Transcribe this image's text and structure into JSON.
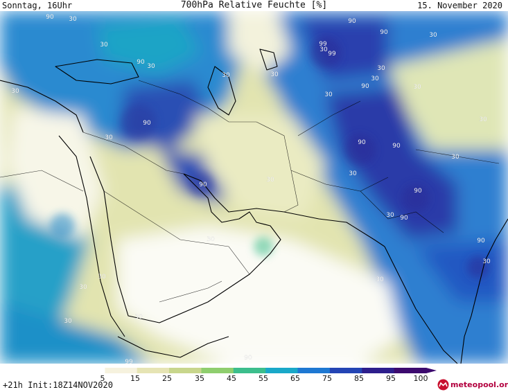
{
  "header": {
    "left": "Sonntag, 16Uhr",
    "title": "700hPa Relative Feuchte [%]",
    "right": "15. November 2020"
  },
  "legend": {
    "ticks": [
      "5",
      "15",
      "25",
      "35",
      "45",
      "55",
      "65",
      "75",
      "85",
      "95",
      "100"
    ],
    "colors": [
      "#ffffff",
      "#f6f2de",
      "#e6e4b4",
      "#c8d68c",
      "#8fce6e",
      "#3cbe8c",
      "#19a8c8",
      "#1e78d2",
      "#2344b4",
      "#2d1e8c",
      "#3c0a6e"
    ]
  },
  "footer": {
    "run_info": "+21h Init:18Z14NOV2020",
    "logo_text": "meteopool.org"
  },
  "map_labels": [
    "90",
    "30",
    "30",
    "90",
    "30",
    "30",
    "99",
    "99",
    "90",
    "90",
    "30",
    "30",
    "30",
    "30",
    "90",
    "30",
    "30",
    "90",
    "30",
    "90",
    "30",
    "90",
    "30",
    "90",
    "30",
    "90",
    "30",
    "90",
    "30",
    "90",
    "30",
    "30",
    "30",
    "30",
    "30",
    "30",
    "30",
    "99",
    "90",
    "30",
    "30"
  ]
}
